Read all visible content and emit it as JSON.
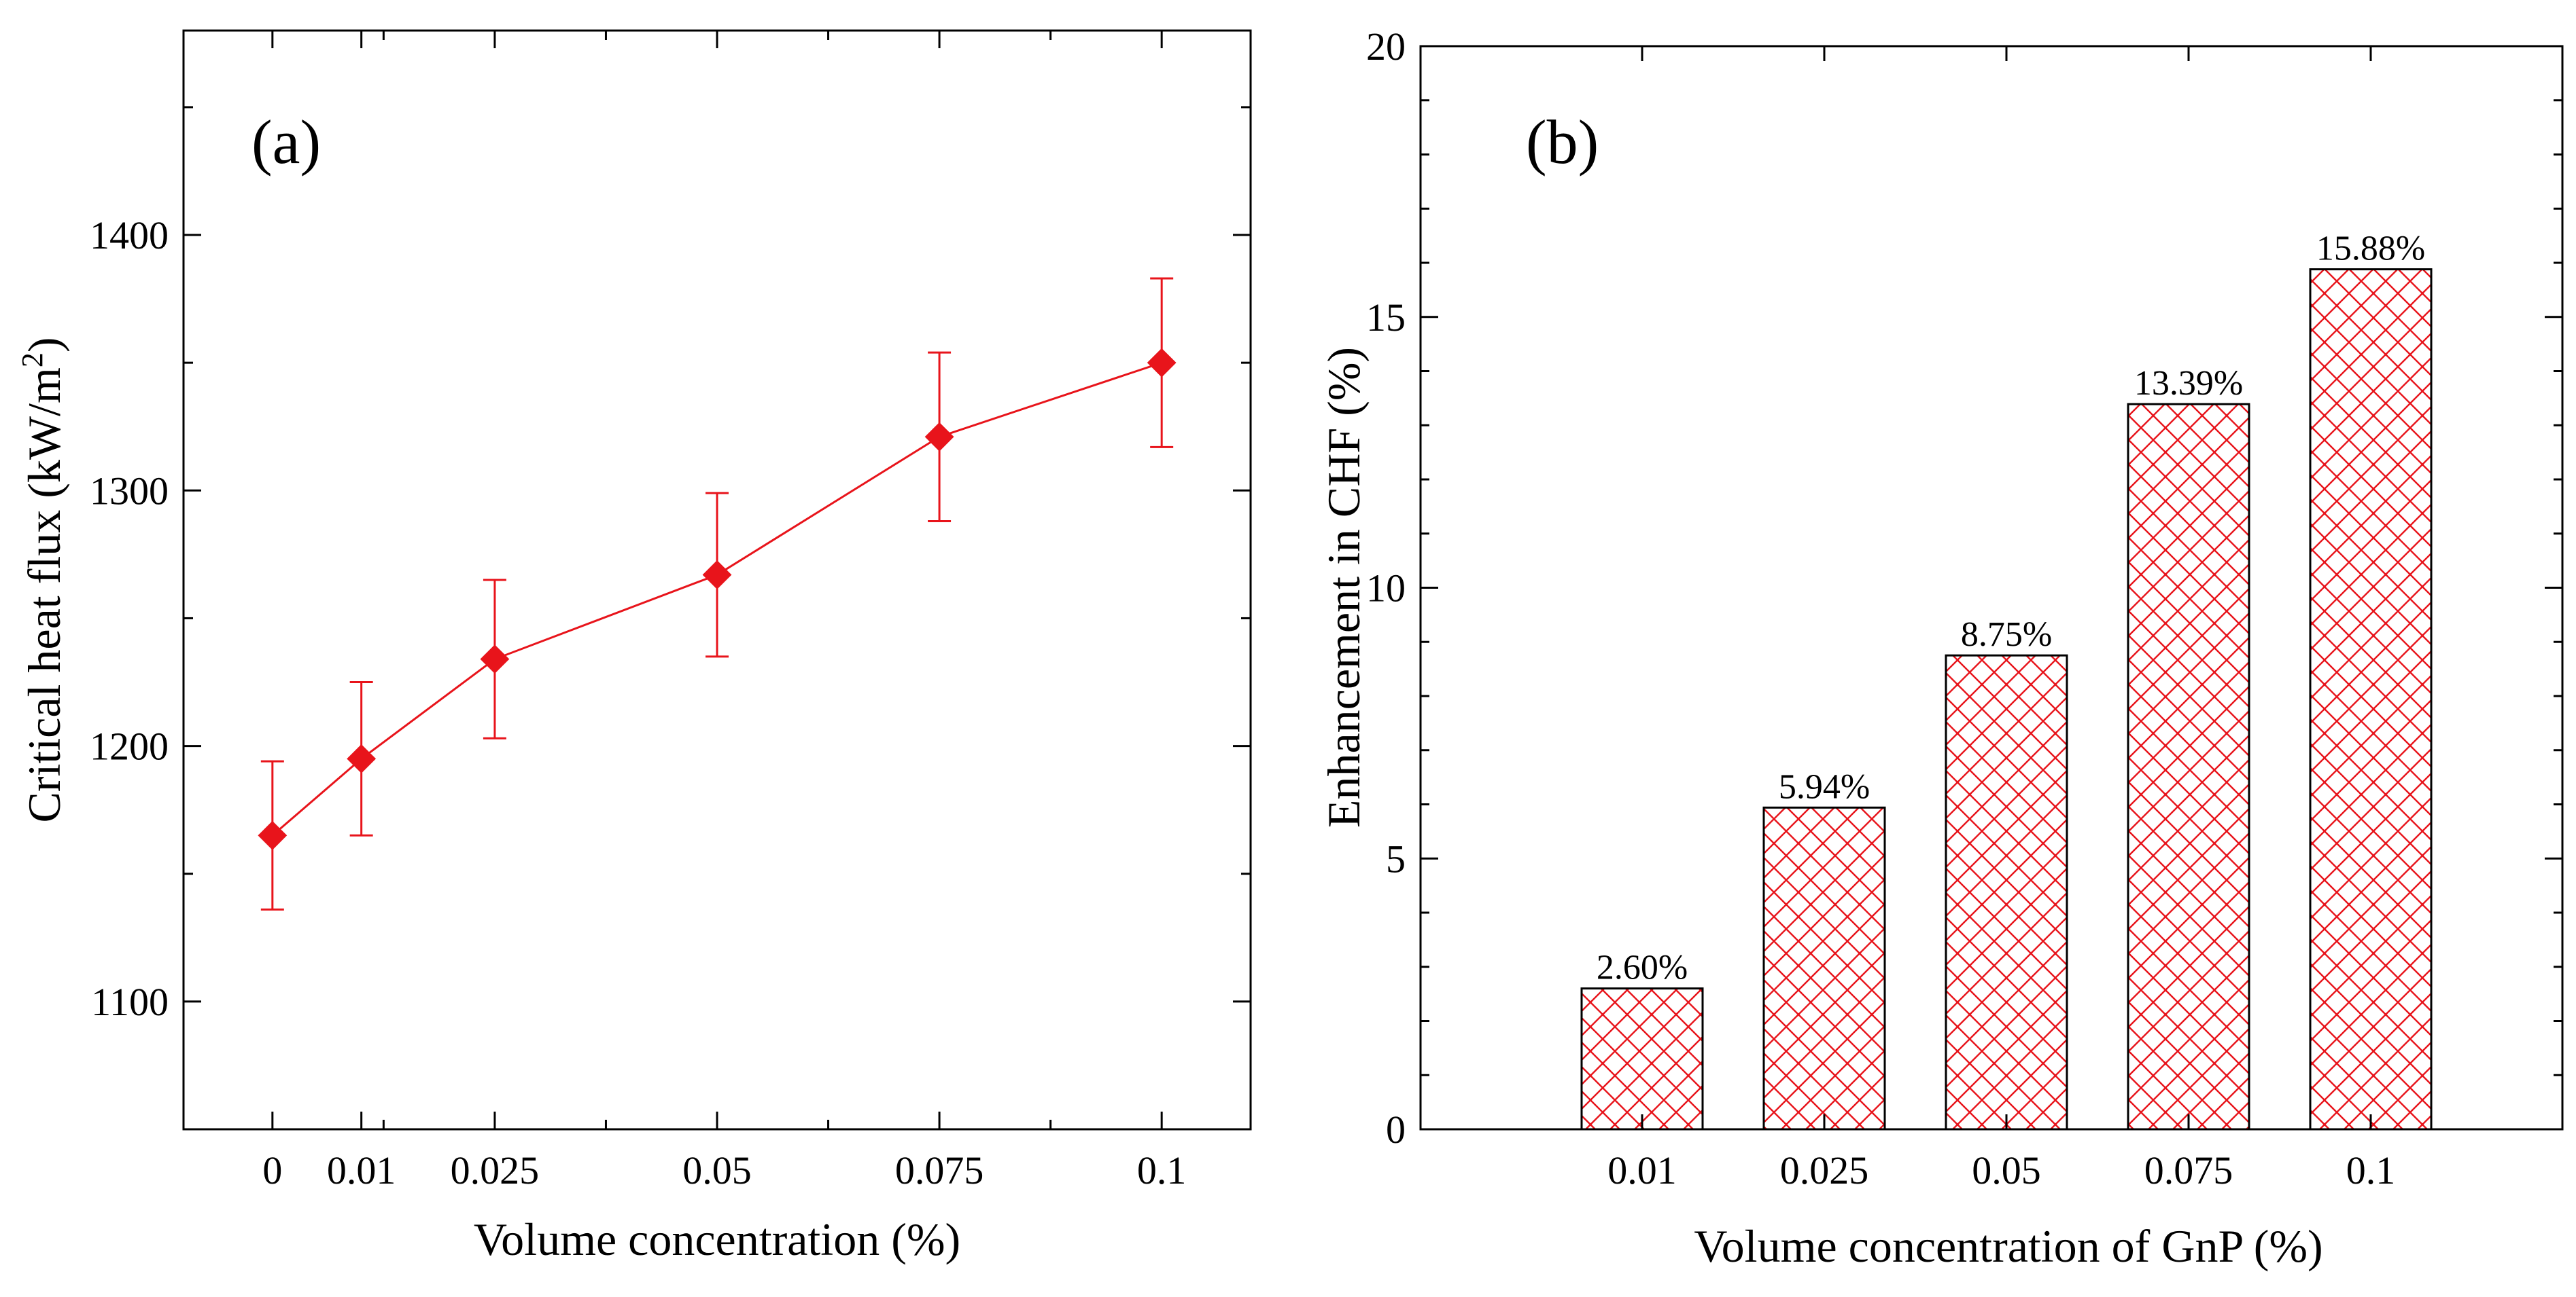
{
  "colors": {
    "series": "#e8141b",
    "axis": "#000000",
    "bar_fill": "#ffffff",
    "hatch": "#e8141b"
  },
  "chart_data": [
    {
      "id": "a",
      "type": "line",
      "panel_label": "(a)",
      "title": "",
      "xlabel": "Volume concentration (%)",
      "ylabel": "Critical heat flux (kW/m",
      "ylabel_sup": "2",
      "ylabel_end": ")",
      "x": [
        0,
        0.01,
        0.025,
        0.05,
        0.075,
        0.1
      ],
      "x_tick_labels": [
        "0",
        "0.01",
        "0.025",
        "0.05",
        "0.075",
        "0.1"
      ],
      "xlim": [
        -0.01,
        0.11
      ],
      "series": [
        {
          "name": "CHF",
          "marker": "diamond",
          "values": [
            1165,
            1195,
            1234,
            1267,
            1321,
            1350
          ],
          "yerr": [
            29,
            30,
            31,
            32,
            33,
            33
          ]
        }
      ],
      "ylim": [
        1050,
        1480
      ],
      "y_ticks": [
        1100,
        1200,
        1300,
        1400
      ],
      "y_tick_labels": [
        "1100",
        "1200",
        "1300",
        "1400"
      ],
      "grid": false
    },
    {
      "id": "b",
      "type": "bar",
      "panel_label": "(b)",
      "title": "",
      "xlabel": "Volume concentration of GnP (%)",
      "ylabel": "Enhancement in CHF (%)",
      "categories": [
        "0.01",
        "0.025",
        "0.05",
        "0.075",
        "0.1"
      ],
      "values": [
        2.6,
        5.94,
        8.75,
        13.39,
        15.88
      ],
      "data_labels": [
        "2.60%",
        "5.94%",
        "8.75%",
        "13.39%",
        "15.88%"
      ],
      "ylim": [
        0,
        20
      ],
      "y_ticks": [
        0,
        5,
        10,
        15,
        20
      ],
      "y_tick_labels": [
        "0",
        "5",
        "10",
        "15",
        "20"
      ],
      "grid": false
    }
  ]
}
